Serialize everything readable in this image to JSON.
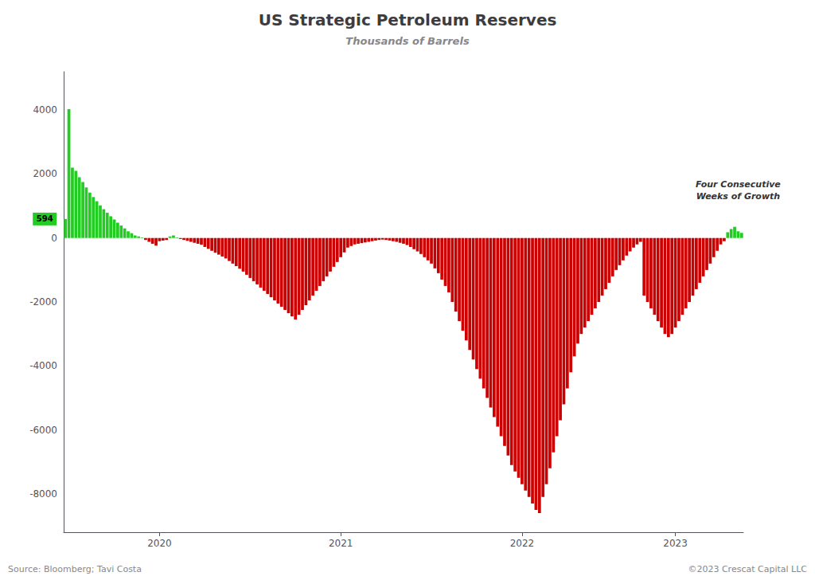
{
  "chart_data": {
    "type": "bar",
    "title": "US Strategic Petroleum Reserves",
    "subtitle": "Thousands of Barrels",
    "source": "Source: Bloomberg; Tavi Costa",
    "copyright": "©2023 Crescat Capital LLC",
    "annotations": [
      "594",
      "Four Consecutive\nWeeks of Growth"
    ],
    "ylim": [
      -9200,
      5200
    ],
    "yticks": [
      -8000,
      -6000,
      -4000,
      -2000,
      0,
      2000,
      4000
    ],
    "grid": false,
    "categories": [
      null,
      null,
      null,
      null,
      null,
      null,
      null,
      null,
      null,
      null,
      null,
      null,
      null,
      null,
      null,
      null,
      null,
      null,
      null,
      null,
      null,
      null,
      null,
      null,
      null,
      null,
      null,
      "2020",
      null,
      null,
      null,
      null,
      null,
      null,
      null,
      null,
      null,
      null,
      null,
      null,
      null,
      null,
      null,
      null,
      null,
      null,
      null,
      null,
      null,
      null,
      null,
      null,
      null,
      null,
      null,
      null,
      null,
      null,
      null,
      null,
      null,
      null,
      null,
      null,
      null,
      null,
      null,
      null,
      null,
      null,
      null,
      null,
      null,
      null,
      null,
      null,
      null,
      null,
      null,
      "2021",
      null,
      null,
      null,
      null,
      null,
      null,
      null,
      null,
      null,
      null,
      null,
      null,
      null,
      null,
      null,
      null,
      null,
      null,
      null,
      null,
      null,
      null,
      null,
      null,
      null,
      null,
      null,
      null,
      null,
      null,
      null,
      null,
      null,
      null,
      null,
      null,
      null,
      null,
      null,
      null,
      null,
      null,
      null,
      null,
      null,
      null,
      null,
      null,
      null,
      null,
      null,
      "2022",
      null,
      null,
      null,
      null,
      null,
      null,
      null,
      null,
      null,
      null,
      null,
      null,
      null,
      null,
      null,
      null,
      null,
      null,
      null,
      null,
      null,
      null,
      null,
      null,
      null,
      null,
      null,
      null,
      null,
      null,
      null,
      null,
      null,
      null,
      null,
      null,
      null,
      null,
      null,
      null,
      null,
      null,
      null,
      "2023",
      null,
      null,
      null,
      null,
      null,
      null,
      null,
      null,
      null,
      null,
      null,
      null,
      null,
      null,
      null,
      null,
      null,
      null,
      null
    ],
    "values": [
      594,
      4027,
      2200,
      2100,
      1900,
      1750,
      1580,
      1420,
      1280,
      1150,
      1020,
      900,
      790,
      680,
      580,
      480,
      390,
      300,
      210,
      150,
      80,
      50,
      20,
      -60,
      -120,
      -180,
      -240,
      -100,
      -80,
      -60,
      50,
      80,
      20,
      -30,
      -60,
      -90,
      -120,
      -150,
      -180,
      -210,
      -280,
      -340,
      -400,
      -460,
      -520,
      -580,
      -640,
      -720,
      -800,
      -880,
      -960,
      -1050,
      -1150,
      -1250,
      -1350,
      -1450,
      -1550,
      -1650,
      -1750,
      -1850,
      -1950,
      -2050,
      -2150,
      -2250,
      -2350,
      -2450,
      -2550,
      -2400,
      -2250,
      -2100,
      -1950,
      -1800,
      -1650,
      -1500,
      -1350,
      -1200,
      -1050,
      -900,
      -750,
      -600,
      -450,
      -300,
      -250,
      -200,
      -180,
      -160,
      -140,
      -120,
      -100,
      -80,
      -60,
      -50,
      -60,
      -80,
      -100,
      -120,
      -150,
      -180,
      -220,
      -280,
      -350,
      -420,
      -500,
      -600,
      -700,
      -800,
      -950,
      -1100,
      -1300,
      -1500,
      -1700,
      -2000,
      -2300,
      -2600,
      -2900,
      -3200,
      -3500,
      -3800,
      -4100,
      -4400,
      -4700,
      -5000,
      -5300,
      -5600,
      -5900,
      -6200,
      -6500,
      -6800,
      -7100,
      -7300,
      -7500,
      -7700,
      -7900,
      -8100,
      -8300,
      -8500,
      -8600,
      -8100,
      -7700,
      -7200,
      -6700,
      -6200,
      -5700,
      -5200,
      -4700,
      -4200,
      -3700,
      -3300,
      -3000,
      -2800,
      -2600,
      -2400,
      -2200,
      -2000,
      -1800,
      -1600,
      -1400,
      -1200,
      -1000,
      -850,
      -700,
      -550,
      -420,
      -300,
      -200,
      -120,
      -1800,
      -2000,
      -2200,
      -2400,
      -2600,
      -2800,
      -3000,
      -3100,
      -3000,
      -2800,
      -2600,
      -2400,
      -2200,
      -2000,
      -1800,
      -1600,
      -1400,
      -1200,
      -1000,
      -800,
      -600,
      -400,
      -200,
      -100,
      180,
      280,
      350,
      210,
      160
    ],
    "colors": [
      "#22cc22",
      "#22cc22",
      "#22cc22",
      "#22cc22",
      "#22cc22",
      "#22cc22",
      "#22cc22",
      "#22cc22",
      "#22cc22",
      "#22cc22",
      "#22cc22",
      "#22cc22",
      "#22cc22",
      "#22cc22",
      "#22cc22",
      "#22cc22",
      "#22cc22",
      "#22cc22",
      "#22cc22",
      "#22cc22",
      "#22cc22",
      "#22cc22",
      "#22cc22",
      "#cc0000",
      "#cc0000",
      "#cc0000",
      "#cc0000",
      "#cc0000",
      "#cc0000",
      "#cc0000",
      "#22cc22",
      "#22cc22",
      "#22cc22",
      "#cc0000",
      "#cc0000",
      "#cc0000",
      "#cc0000",
      "#cc0000",
      "#cc0000",
      "#cc0000",
      "#cc0000",
      "#cc0000",
      "#cc0000",
      "#cc0000",
      "#cc0000",
      "#cc0000",
      "#cc0000",
      "#cc0000",
      "#cc0000",
      "#cc0000",
      "#cc0000",
      "#cc0000",
      "#cc0000",
      "#cc0000",
      "#cc0000",
      "#cc0000",
      "#cc0000",
      "#cc0000",
      "#cc0000",
      "#cc0000",
      "#cc0000",
      "#cc0000",
      "#cc0000",
      "#cc0000",
      "#cc0000",
      "#cc0000",
      "#cc0000",
      "#cc0000",
      "#cc0000",
      "#cc0000",
      "#cc0000",
      "#cc0000",
      "#cc0000",
      "#cc0000",
      "#cc0000",
      "#cc0000",
      "#cc0000",
      "#cc0000",
      "#cc0000",
      "#cc0000",
      "#cc0000",
      "#cc0000",
      "#cc0000",
      "#cc0000",
      "#cc0000",
      "#cc0000",
      "#cc0000",
      "#cc0000",
      "#cc0000",
      "#cc0000",
      "#cc0000",
      "#cc0000",
      "#cc0000",
      "#cc0000",
      "#cc0000",
      "#cc0000",
      "#cc0000",
      "#cc0000",
      "#cc0000",
      "#cc0000",
      "#cc0000",
      "#cc0000",
      "#cc0000",
      "#cc0000",
      "#cc0000",
      "#cc0000",
      "#cc0000",
      "#cc0000",
      "#cc0000",
      "#cc0000",
      "#cc0000",
      "#cc0000",
      "#cc0000",
      "#cc0000",
      "#cc0000",
      "#cc0000",
      "#cc0000",
      "#cc0000",
      "#cc0000",
      "#cc0000",
      "#cc0000",
      "#cc0000",
      "#cc0000",
      "#cc0000",
      "#cc0000",
      "#cc0000",
      "#cc0000",
      "#cc0000",
      "#cc0000",
      "#cc0000",
      "#cc0000",
      "#cc0000",
      "#cc0000",
      "#cc0000",
      "#cc0000",
      "#cc0000",
      "#cc0000",
      "#cc0000",
      "#cc0000",
      "#cc0000",
      "#cc0000",
      "#cc0000",
      "#cc0000",
      "#cc0000",
      "#cc0000",
      "#cc0000",
      "#cc0000",
      "#cc0000",
      "#cc0000",
      "#cc0000",
      "#cc0000",
      "#cc0000",
      "#cc0000",
      "#cc0000",
      "#cc0000",
      "#cc0000",
      "#cc0000",
      "#cc0000",
      "#cc0000",
      "#cc0000",
      "#cc0000",
      "#cc0000",
      "#cc0000",
      "#cc0000",
      "#cc0000",
      "#cc0000",
      "#cc0000",
      "#cc0000",
      "#cc0000",
      "#cc0000",
      "#cc0000",
      "#cc0000",
      "#cc0000",
      "#cc0000",
      "#cc0000",
      "#cc0000",
      "#cc0000",
      "#cc0000",
      "#cc0000",
      "#cc0000",
      "#cc0000",
      "#cc0000",
      "#cc0000",
      "#cc0000",
      "#cc0000",
      "#cc0000",
      "#cc0000",
      "#cc0000",
      "#cc0000",
      "#cc0000",
      "#22cc22",
      "#22cc22",
      "#22cc22",
      "#22cc22",
      "#22cc22"
    ]
  }
}
